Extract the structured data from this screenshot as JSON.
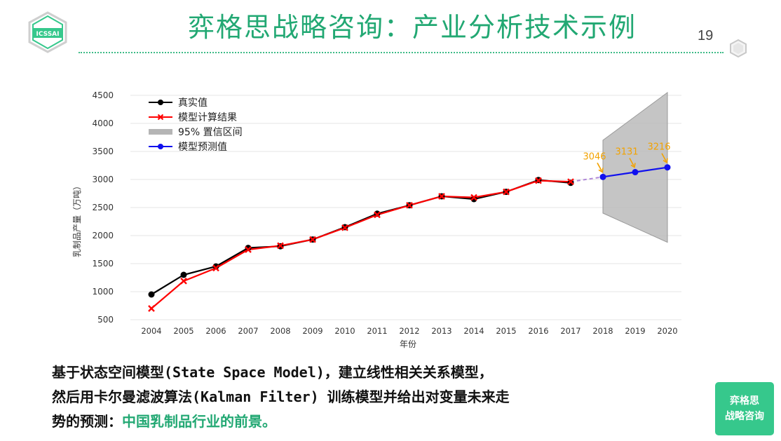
{
  "header": {
    "logo_text": "ICSSAI",
    "title": "弈格思战略咨询：产业分析技术示例",
    "page_number": "19"
  },
  "chart_data": {
    "type": "line",
    "xlabel": "年份",
    "ylabel": "乳制品产量（万吨）",
    "ylim": [
      500,
      4500
    ],
    "yticks": [
      500,
      1000,
      1500,
      2000,
      2500,
      3000,
      3500,
      4000,
      4500
    ],
    "x": [
      2004,
      2005,
      2006,
      2007,
      2008,
      2009,
      2010,
      2011,
      2012,
      2013,
      2014,
      2015,
      2016,
      2017,
      2018,
      2019,
      2020
    ],
    "grid": true,
    "legend_position": "top-left",
    "series": [
      {
        "name": "真实值",
        "color": "#000000",
        "x": [
          2004,
          2005,
          2006,
          2007,
          2008,
          2009,
          2010,
          2011,
          2012,
          2013,
          2014,
          2015,
          2016,
          2017
        ],
        "values": [
          950,
          1300,
          1450,
          1780,
          1810,
          1930,
          2150,
          2390,
          2540,
          2700,
          2650,
          2780,
          2990,
          2940
        ]
      },
      {
        "name": "模型计算结果",
        "color": "#ff0000",
        "x": [
          2004,
          2005,
          2006,
          2007,
          2008,
          2009,
          2010,
          2011,
          2012,
          2013,
          2014,
          2015,
          2016,
          2017
        ],
        "values": [
          700,
          1190,
          1420,
          1750,
          1820,
          1930,
          2140,
          2370,
          2540,
          2700,
          2680,
          2780,
          2980,
          2960
        ]
      },
      {
        "name": "模型预测值",
        "color": "#1010ee",
        "x": [
          2018,
          2019,
          2020
        ],
        "values": [
          3046,
          3131,
          3216
        ]
      }
    ],
    "band": {
      "name": "95% 置信区间",
      "color": "#bbbbbb",
      "x": [
        2018,
        2020
      ],
      "upper": [
        3700,
        4550
      ],
      "lower": [
        2400,
        1880
      ]
    },
    "annotations": [
      "3046",
      "3131",
      "3216"
    ]
  },
  "caption": {
    "line1": "基于状态空间模型(State Space Model)，建立线性相关关系模型，",
    "line2": "然后用卡尔曼滤波算法(Kalman Filter) 训练模型并给出对变量未来走",
    "line3_prefix": "势的预测：",
    "line3_highlight": "中国乳制品行业的前景。"
  },
  "badge": {
    "line1": "弈格思",
    "line2": "战略咨询"
  }
}
